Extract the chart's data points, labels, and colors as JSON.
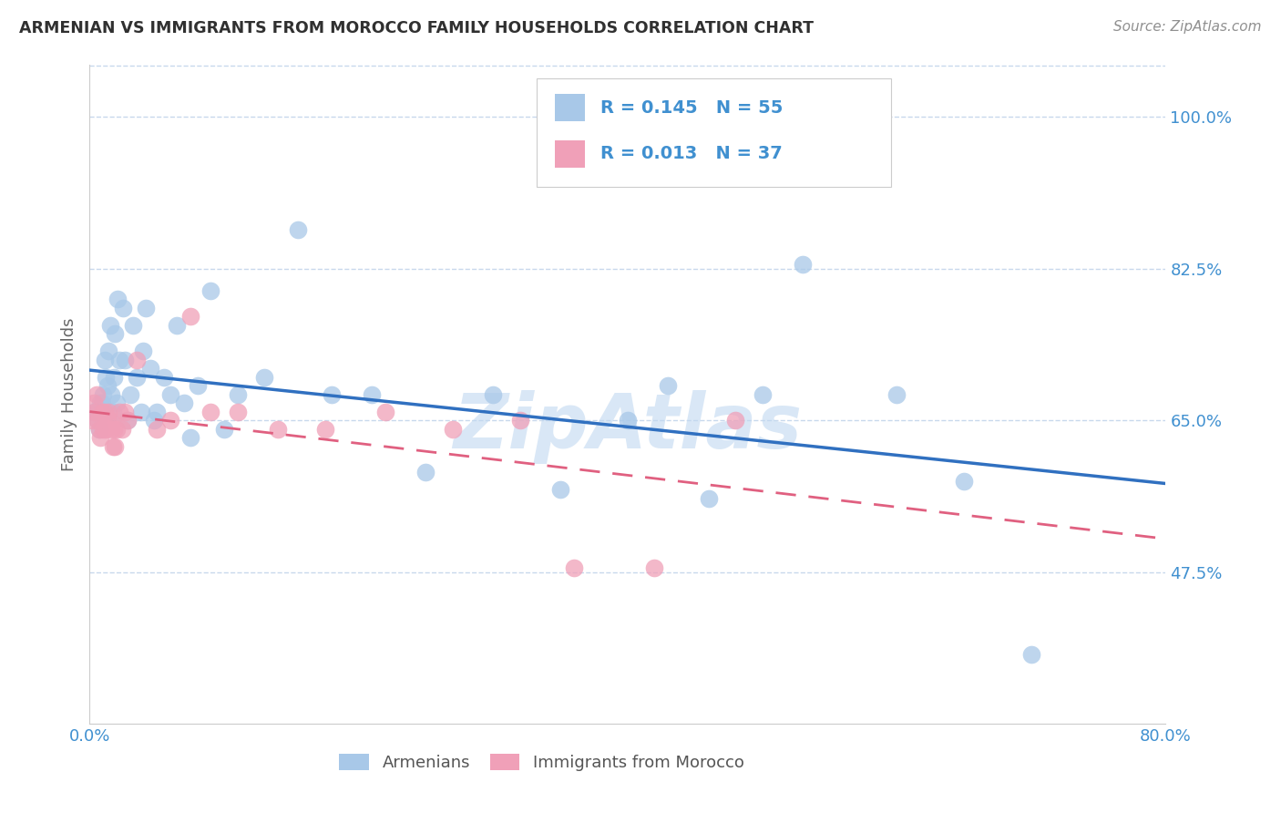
{
  "title": "ARMENIAN VS IMMIGRANTS FROM MOROCCO FAMILY HOUSEHOLDS CORRELATION CHART",
  "source": "Source: ZipAtlas.com",
  "ylabel": "Family Households",
  "xlim": [
    0.0,
    0.8
  ],
  "ylim": [
    0.3,
    1.06
  ],
  "yticks": [
    0.475,
    0.65,
    0.825,
    1.0
  ],
  "ytick_labels": [
    "47.5%",
    "65.0%",
    "82.5%",
    "100.0%"
  ],
  "xtick_labels_left": "0.0%",
  "xtick_labels_right": "80.0%",
  "legend1_R": "0.145",
  "legend1_N": "55",
  "legend2_R": "0.013",
  "legend2_N": "37",
  "legend1_label": "Armenians",
  "legend2_label": "Immigrants from Morocco",
  "blue_color": "#a8c8e8",
  "pink_color": "#f0a0b8",
  "blue_line_color": "#3070c0",
  "pink_line_color": "#e06080",
  "title_color": "#303030",
  "source_color": "#909090",
  "axis_label_color": "#4090d0",
  "grid_color": "#c8d8ec",
  "watermark_color": "#c0d8f0",
  "blue_scatter_x": [
    0.003,
    0.005,
    0.006,
    0.007,
    0.008,
    0.009,
    0.01,
    0.011,
    0.012,
    0.013,
    0.014,
    0.015,
    0.016,
    0.017,
    0.018,
    0.019,
    0.02,
    0.021,
    0.022,
    0.025,
    0.026,
    0.028,
    0.03,
    0.032,
    0.035,
    0.038,
    0.04,
    0.042,
    0.045,
    0.048,
    0.05,
    0.055,
    0.06,
    0.065,
    0.07,
    0.075,
    0.08,
    0.09,
    0.1,
    0.11,
    0.13,
    0.155,
    0.18,
    0.21,
    0.25,
    0.3,
    0.35,
    0.4,
    0.43,
    0.46,
    0.5,
    0.53,
    0.6,
    0.65,
    0.7
  ],
  "blue_scatter_y": [
    0.66,
    0.66,
    0.65,
    0.64,
    0.67,
    0.67,
    0.68,
    0.72,
    0.7,
    0.69,
    0.73,
    0.76,
    0.68,
    0.66,
    0.7,
    0.75,
    0.67,
    0.79,
    0.72,
    0.78,
    0.72,
    0.65,
    0.68,
    0.76,
    0.7,
    0.66,
    0.73,
    0.78,
    0.71,
    0.65,
    0.66,
    0.7,
    0.68,
    0.76,
    0.67,
    0.63,
    0.69,
    0.8,
    0.64,
    0.68,
    0.7,
    0.87,
    0.68,
    0.68,
    0.59,
    0.68,
    0.57,
    0.65,
    0.69,
    0.56,
    0.68,
    0.83,
    0.68,
    0.58,
    0.38
  ],
  "pink_scatter_x": [
    0.002,
    0.003,
    0.004,
    0.005,
    0.006,
    0.007,
    0.008,
    0.009,
    0.01,
    0.011,
    0.012,
    0.013,
    0.014,
    0.015,
    0.016,
    0.017,
    0.018,
    0.019,
    0.02,
    0.022,
    0.024,
    0.026,
    0.028,
    0.035,
    0.05,
    0.06,
    0.075,
    0.09,
    0.11,
    0.14,
    0.175,
    0.22,
    0.27,
    0.32,
    0.36,
    0.42,
    0.48
  ],
  "pink_scatter_y": [
    0.65,
    0.67,
    0.66,
    0.68,
    0.65,
    0.64,
    0.63,
    0.66,
    0.64,
    0.66,
    0.64,
    0.65,
    0.66,
    0.65,
    0.64,
    0.62,
    0.64,
    0.62,
    0.64,
    0.66,
    0.64,
    0.66,
    0.65,
    0.72,
    0.64,
    0.65,
    0.77,
    0.66,
    0.66,
    0.64,
    0.64,
    0.66,
    0.64,
    0.65,
    0.48,
    0.48,
    0.65
  ]
}
